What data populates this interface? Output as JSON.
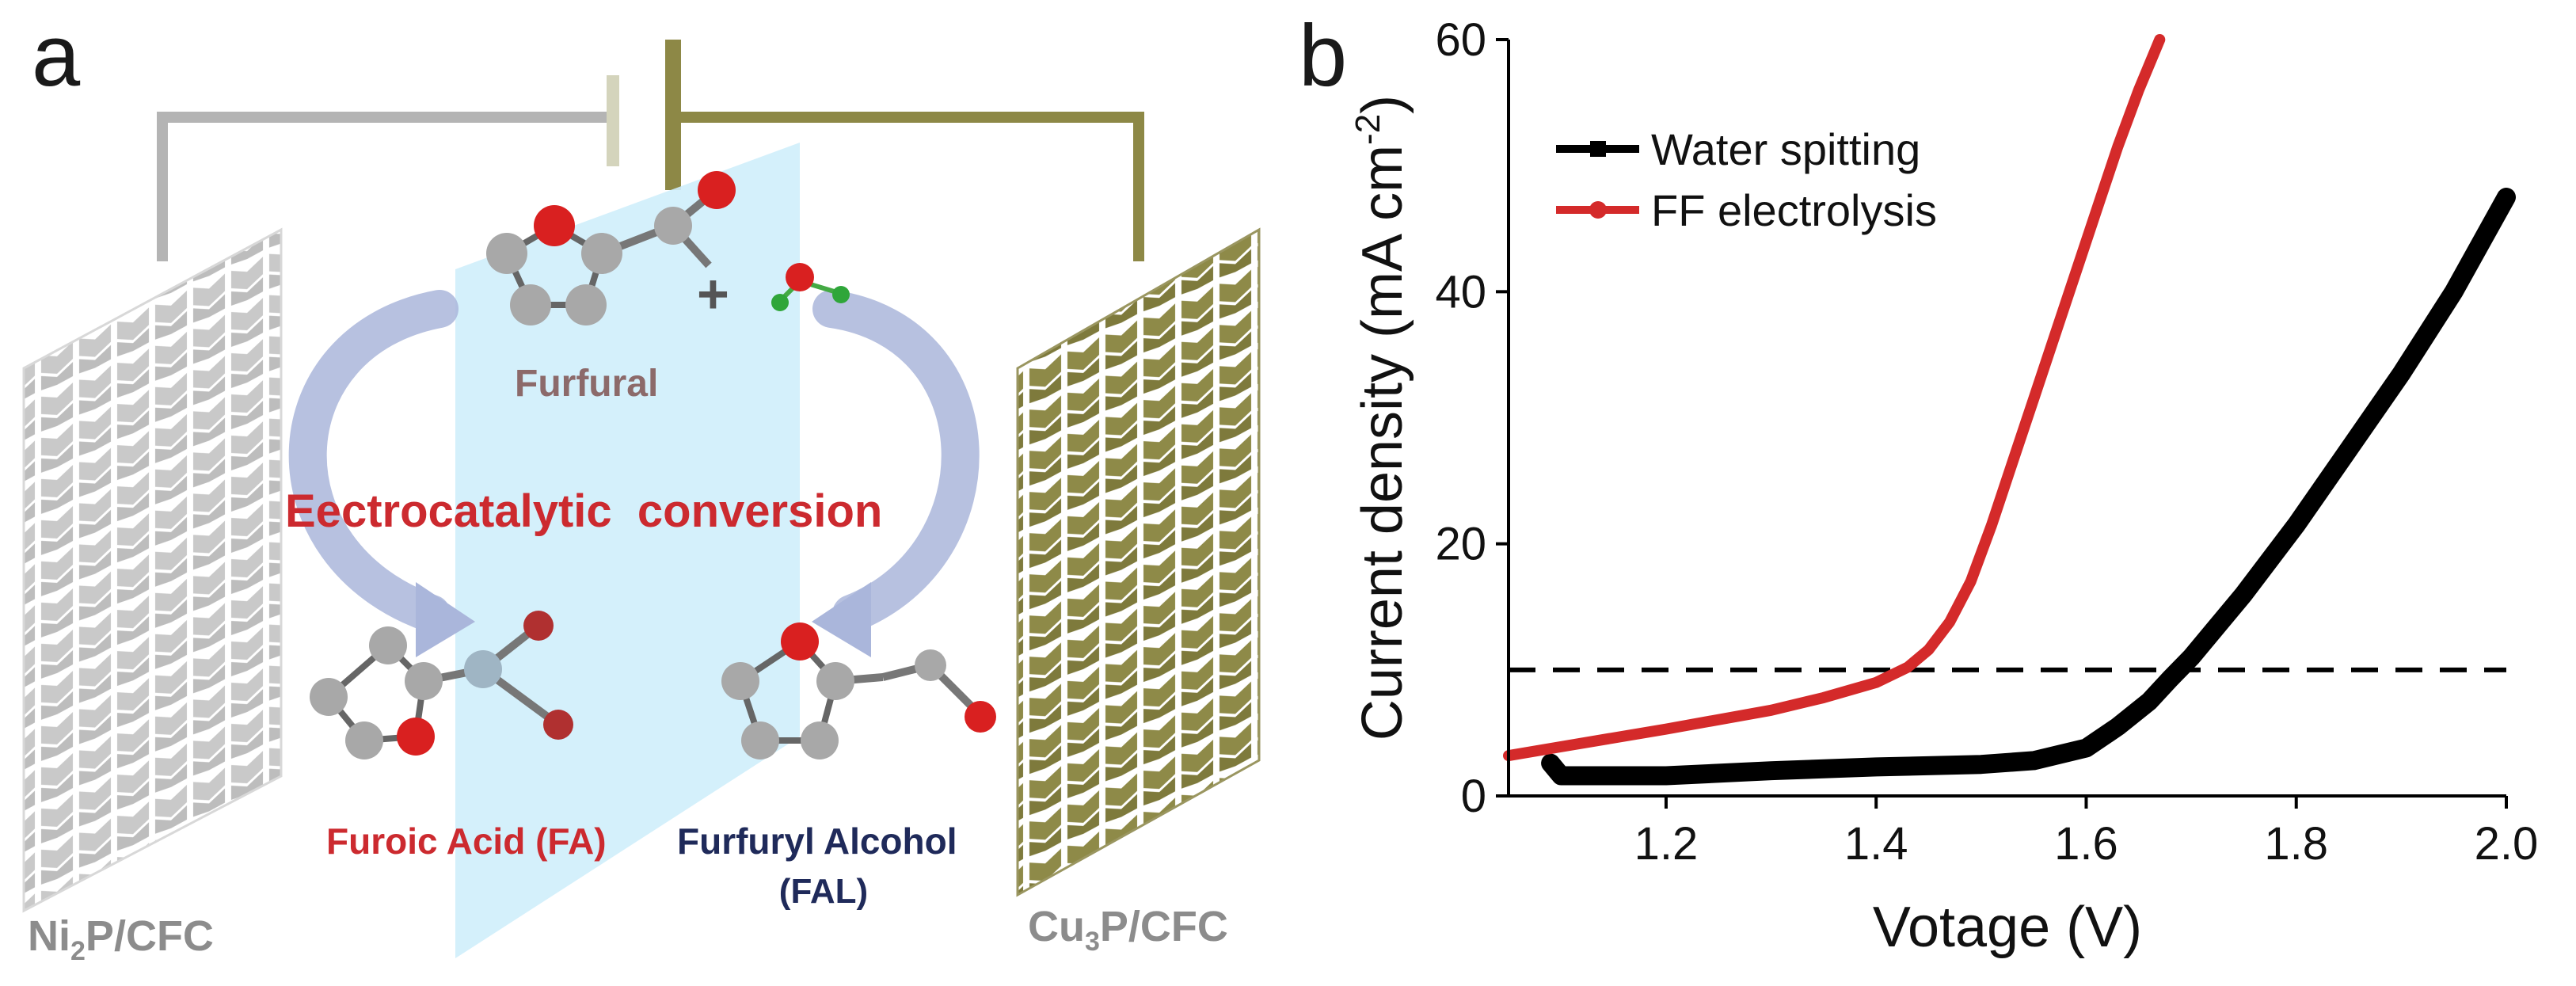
{
  "panel_a": {
    "label": "a",
    "left_electrode": {
      "base": "Ni",
      "sub": "2",
      "rest": "P/CFC"
    },
    "right_electrode": {
      "base": "Cu",
      "sub": "3",
      "rest": "P/CFC"
    },
    "reactant": "Furfural",
    "plus_sign": "+",
    "process": "Eectrocatalytic  conversion",
    "product_left": "Furoic Acid (FA)",
    "product_right_line1": "Furfuryl Alcohol",
    "product_right_line2": "(FAL)",
    "colors": {
      "left_electrode": "#c8c8c8",
      "right_electrode": "#8c8744",
      "membrane": "#cdeefb",
      "process_text": "#cc2a2f",
      "fal_text": "#1f2a5a",
      "furfural_text": "#8c6a6a",
      "electrode_label": "#8c8c8c"
    }
  },
  "panel_b": {
    "label": "b",
    "legend_ws": "Water spitting",
    "legend_ff": "FF electrolysis"
  },
  "chart_data": {
    "type": "line",
    "xlabel": "Votage (V)",
    "ylabel_main": "Current density (mA cm",
    "ylabel_sup": "-2",
    "ylabel_end": ")",
    "xlim": [
      1.05,
      2.0
    ],
    "ylim": [
      0,
      60
    ],
    "xticks": [
      1.2,
      1.4,
      1.6,
      1.8,
      2.0
    ],
    "xtick_labels": [
      "1.2",
      "1.4",
      "1.6",
      "1.8",
      "2.0"
    ],
    "yticks": [
      0,
      20,
      40,
      60
    ],
    "ytick_labels": [
      "0",
      "20",
      "40",
      "60"
    ],
    "reference_line": {
      "y": 10,
      "style": "dashed"
    },
    "series": [
      {
        "name": "Water spitting",
        "color": "#000000",
        "x": [
          1.09,
          1.1,
          1.2,
          1.3,
          1.4,
          1.5,
          1.55,
          1.6,
          1.63,
          1.66,
          1.68,
          1.7,
          1.72,
          1.75,
          1.8,
          1.85,
          1.9,
          1.95,
          2.0
        ],
        "y": [
          2.6,
          1.6,
          1.6,
          2.0,
          2.3,
          2.5,
          2.8,
          3.8,
          5.5,
          7.5,
          9.3,
          11.0,
          13.0,
          16.0,
          21.5,
          27.5,
          33.5,
          40.0,
          47.5
        ]
      },
      {
        "name": "FF electrolysis",
        "color": "#d42a2a",
        "x": [
          1.05,
          1.1,
          1.2,
          1.3,
          1.35,
          1.4,
          1.43,
          1.45,
          1.47,
          1.49,
          1.51,
          1.53,
          1.55,
          1.57,
          1.59,
          1.61,
          1.63,
          1.65,
          1.67
        ],
        "y": [
          3.2,
          3.9,
          5.3,
          6.8,
          7.8,
          9.0,
          10.2,
          11.6,
          13.8,
          17.0,
          21.5,
          26.5,
          31.5,
          36.5,
          41.5,
          46.5,
          51.5,
          56.0,
          60.0
        ]
      }
    ]
  }
}
